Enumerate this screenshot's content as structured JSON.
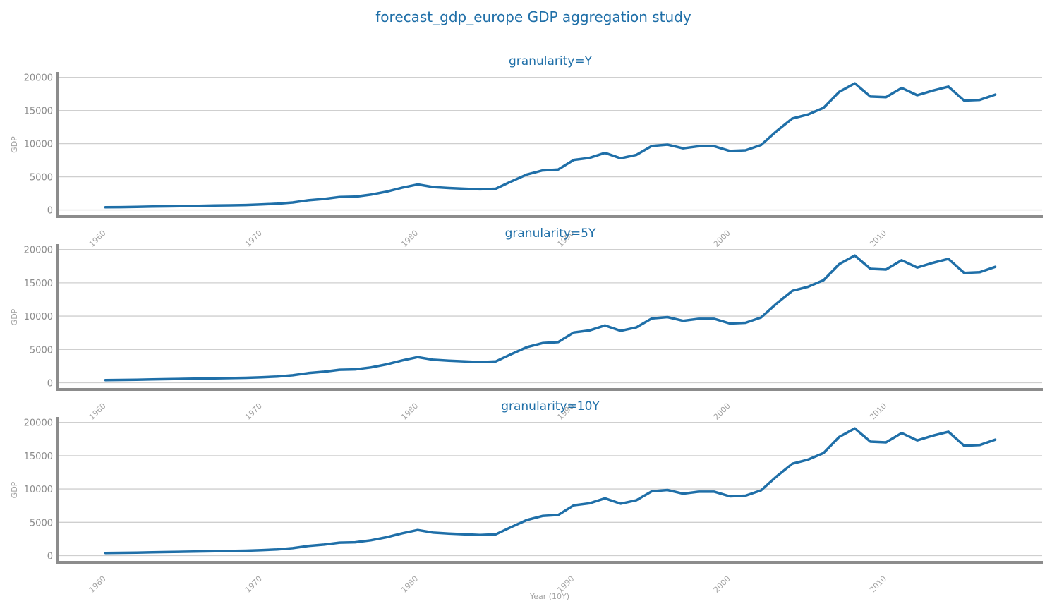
{
  "figure": {
    "title": "forecast_gdp_europe GDP aggregation study",
    "xlabel": "Year (10Y)",
    "line_color": "#1f6fa8",
    "grid_color": "#cfcfcf",
    "axis_color": "#8c8c8c"
  },
  "chart_data": [
    {
      "type": "line",
      "title": "granularity=Y",
      "xlabel": "",
      "ylabel": "GDP",
      "xlim": [
        1957,
        2020
      ],
      "ylim": [
        -900,
        20600
      ],
      "xticks": [
        "1960",
        "1970",
        "1980",
        "1990",
        "2000",
        "2010"
      ],
      "yticks": [
        "0",
        "5000",
        "10000",
        "15000",
        "20000"
      ],
      "grid": true,
      "series": [
        {
          "x": [
            1960,
            1961,
            1962,
            1963,
            1964,
            1965,
            1966,
            1967,
            1968,
            1969,
            1970,
            1971,
            1972,
            1973,
            1974,
            1975,
            1976,
            1977,
            1978,
            1979,
            1980,
            1981,
            1982,
            1983,
            1984,
            1985,
            1986,
            1987,
            1988,
            1989,
            1990,
            1991,
            1992,
            1993,
            1994,
            1995,
            1996,
            1997,
            1998,
            1999,
            2000,
            2001,
            2002,
            2003,
            2004,
            2005,
            2006,
            2007,
            2008,
            2009,
            2010,
            2011,
            2012,
            2013,
            2014,
            2015,
            2016,
            2017
          ],
          "values": [
            400,
            420,
            460,
            500,
            540,
            580,
            620,
            660,
            700,
            740,
            820,
            930,
            1120,
            1450,
            1650,
            1950,
            2000,
            2300,
            2750,
            3350,
            3850,
            3450,
            3300,
            3200,
            3100,
            3200,
            4300,
            5350,
            5950,
            6100,
            7550,
            7850,
            8600,
            7800,
            8300,
            9650,
            9850,
            9300,
            9600,
            9600,
            8900,
            9000,
            9800,
            11900,
            13800,
            14400,
            15400,
            17800,
            19100,
            17100,
            17000,
            18400,
            17300,
            18000,
            18600,
            16500,
            16600,
            17400
          ]
        }
      ]
    },
    {
      "type": "line",
      "title": "granularity=5Y",
      "xlabel": "",
      "ylabel": "GDP",
      "xlim": [
        1957,
        2020
      ],
      "ylim": [
        -900,
        20600
      ],
      "xticks": [
        "1960",
        "1970",
        "1980",
        "1990",
        "2000",
        "2010"
      ],
      "yticks": [
        "0",
        "5000",
        "10000",
        "15000",
        "20000"
      ],
      "grid": true,
      "series": [
        {
          "x": [
            1960,
            1961,
            1962,
            1963,
            1964,
            1965,
            1966,
            1967,
            1968,
            1969,
            1970,
            1971,
            1972,
            1973,
            1974,
            1975,
            1976,
            1977,
            1978,
            1979,
            1980,
            1981,
            1982,
            1983,
            1984,
            1985,
            1986,
            1987,
            1988,
            1989,
            1990,
            1991,
            1992,
            1993,
            1994,
            1995,
            1996,
            1997,
            1998,
            1999,
            2000,
            2001,
            2002,
            2003,
            2004,
            2005,
            2006,
            2007,
            2008,
            2009,
            2010,
            2011,
            2012,
            2013,
            2014,
            2015,
            2016,
            2017
          ],
          "values": [
            400,
            420,
            460,
            500,
            540,
            580,
            620,
            660,
            700,
            740,
            820,
            930,
            1120,
            1450,
            1650,
            1950,
            2000,
            2300,
            2750,
            3350,
            3850,
            3450,
            3300,
            3200,
            3100,
            3200,
            4300,
            5350,
            5950,
            6100,
            7550,
            7850,
            8600,
            7800,
            8300,
            9650,
            9850,
            9300,
            9600,
            9600,
            8900,
            9000,
            9800,
            11900,
            13800,
            14400,
            15400,
            17800,
            19100,
            17100,
            17000,
            18400,
            17300,
            18000,
            18600,
            16500,
            16600,
            17400
          ]
        }
      ]
    },
    {
      "type": "line",
      "title": "granularity=10Y",
      "xlabel": "Year (10Y)",
      "ylabel": "GDP",
      "xlim": [
        1957,
        2020
      ],
      "ylim": [
        -900,
        20600
      ],
      "xticks": [
        "1960",
        "1970",
        "1980",
        "1990",
        "2000",
        "2010"
      ],
      "yticks": [
        "0",
        "5000",
        "10000",
        "15000",
        "20000"
      ],
      "grid": true,
      "series": [
        {
          "x": [
            1960,
            1961,
            1962,
            1963,
            1964,
            1965,
            1966,
            1967,
            1968,
            1969,
            1970,
            1971,
            1972,
            1973,
            1974,
            1975,
            1976,
            1977,
            1978,
            1979,
            1980,
            1981,
            1982,
            1983,
            1984,
            1985,
            1986,
            1987,
            1988,
            1989,
            1990,
            1991,
            1992,
            1993,
            1994,
            1995,
            1996,
            1997,
            1998,
            1999,
            2000,
            2001,
            2002,
            2003,
            2004,
            2005,
            2006,
            2007,
            2008,
            2009,
            2010,
            2011,
            2012,
            2013,
            2014,
            2015,
            2016,
            2017
          ],
          "values": [
            400,
            420,
            460,
            500,
            540,
            580,
            620,
            660,
            700,
            740,
            820,
            930,
            1120,
            1450,
            1650,
            1950,
            2000,
            2300,
            2750,
            3350,
            3850,
            3450,
            3300,
            3200,
            3100,
            3200,
            4300,
            5350,
            5950,
            6100,
            7550,
            7850,
            8600,
            7800,
            8300,
            9650,
            9850,
            9300,
            9600,
            9600,
            8900,
            9000,
            9800,
            11900,
            13800,
            14400,
            15400,
            17800,
            19100,
            17100,
            17000,
            18400,
            17300,
            18000,
            18600,
            16500,
            16600,
            17400
          ]
        }
      ]
    }
  ]
}
